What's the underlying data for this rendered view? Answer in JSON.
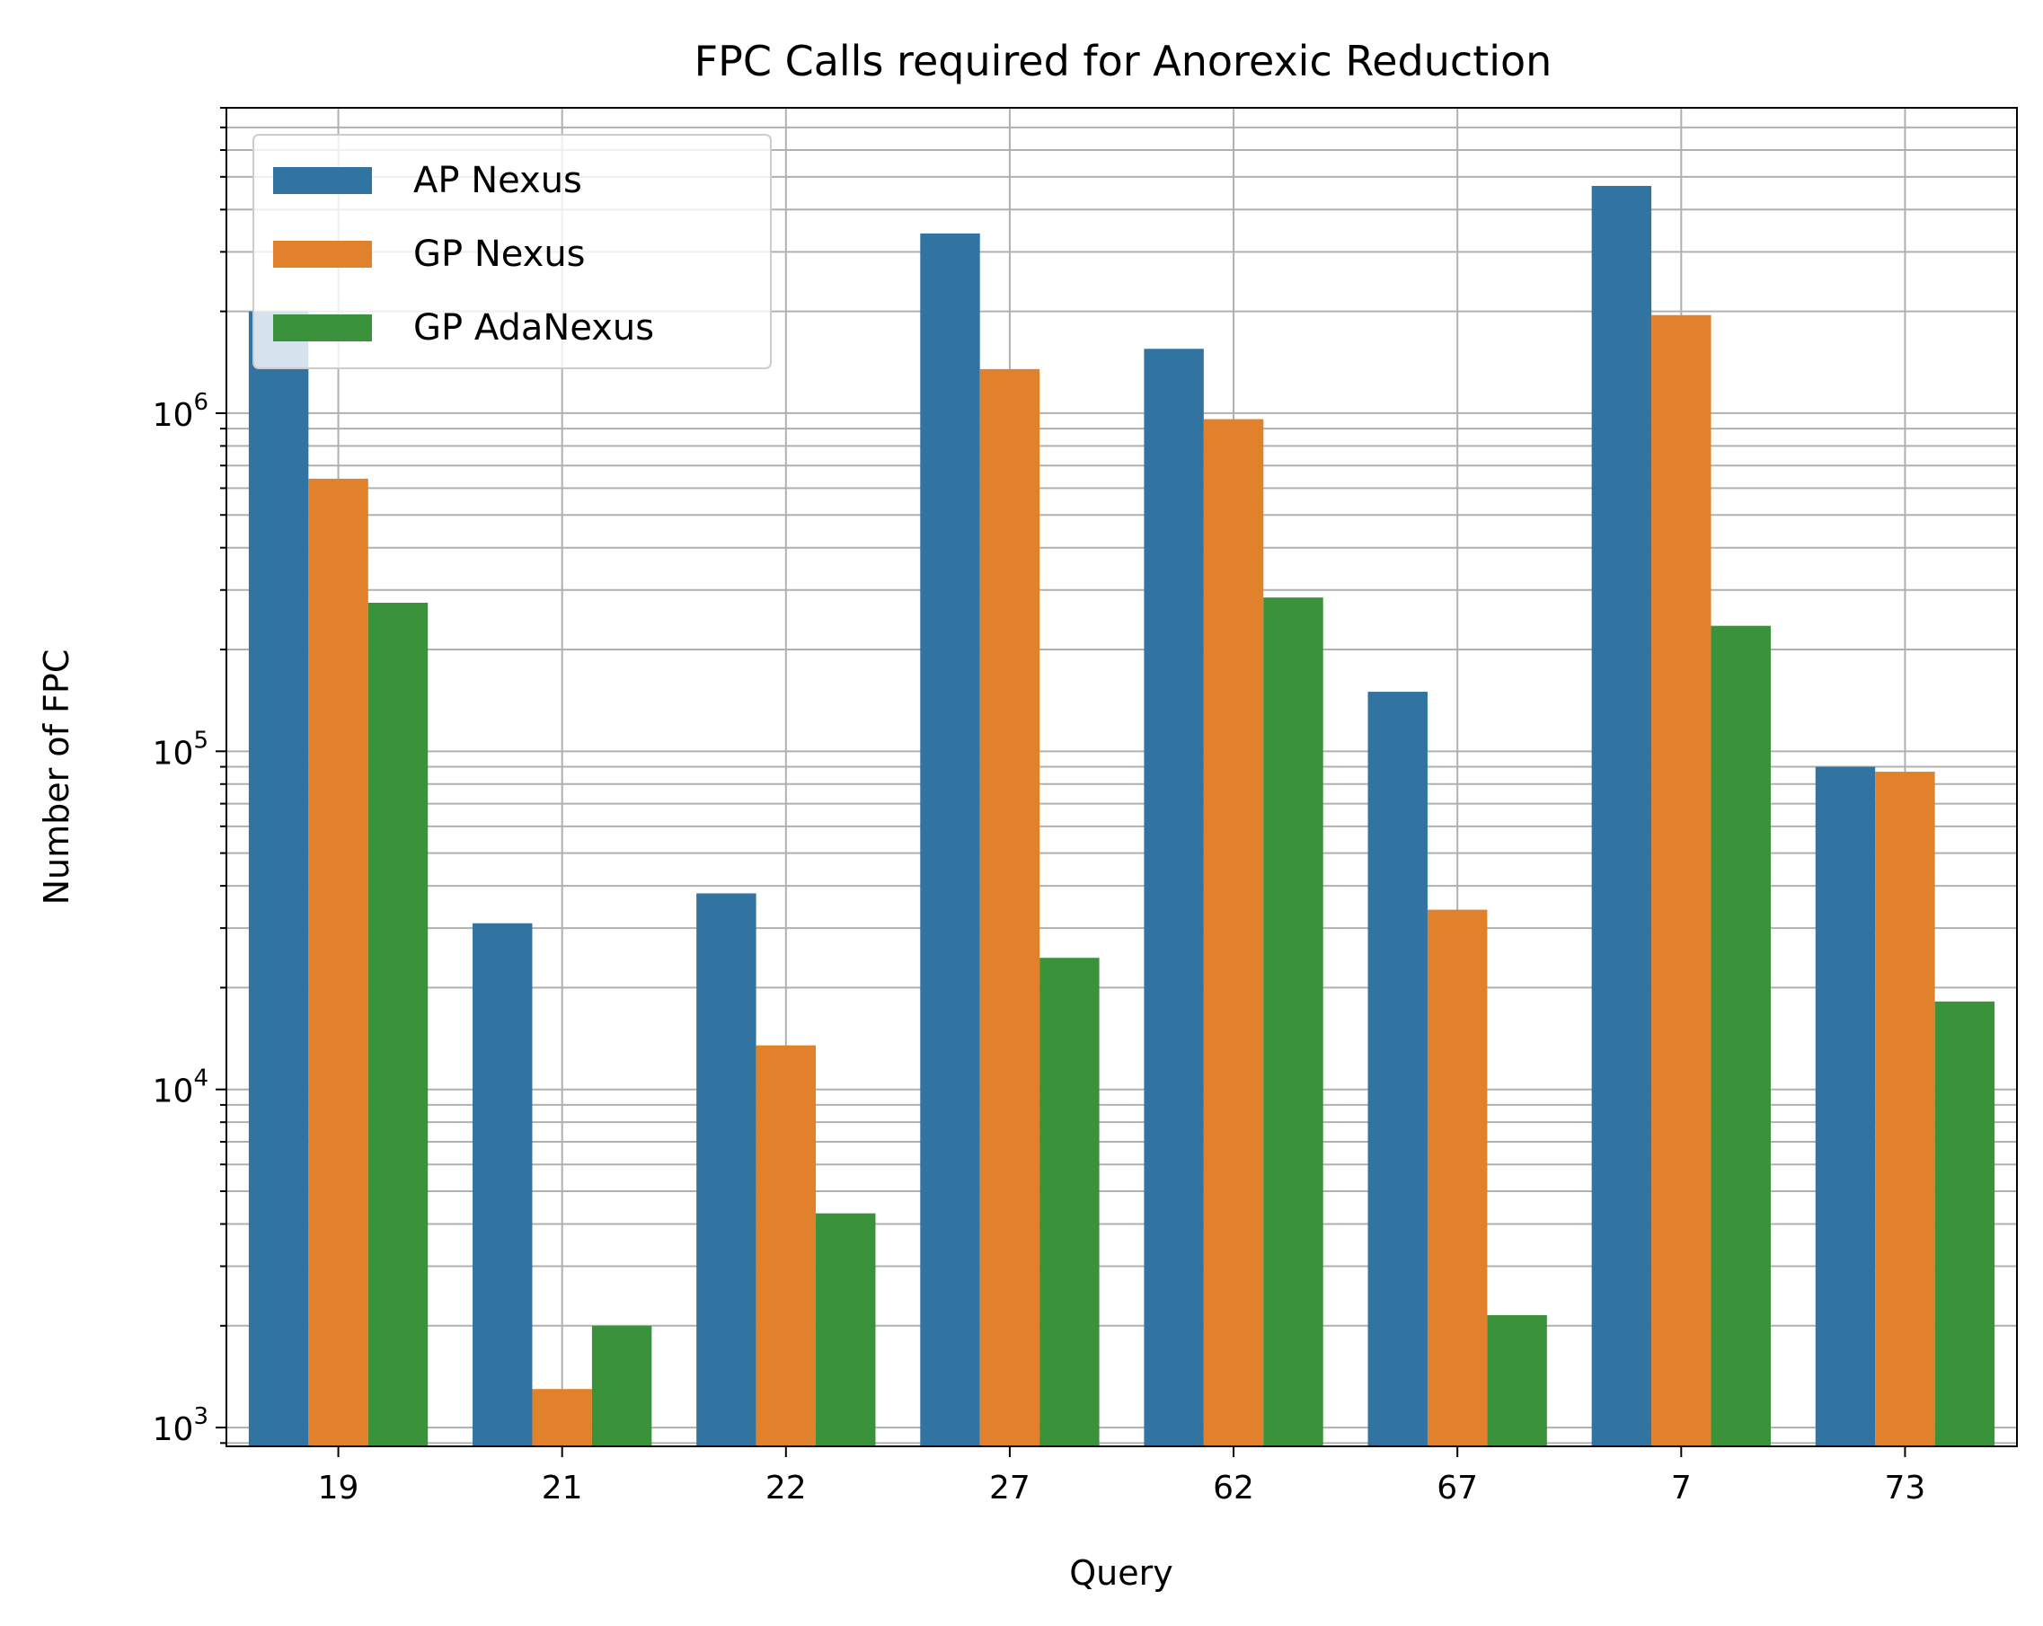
{
  "chart_data": {
    "type": "bar",
    "title": "FPC Calls required for Anorexic Reduction",
    "xlabel": "Query",
    "ylabel": "Number of FPC",
    "yscale": "log",
    "ylim": [
      880,
      8000000
    ],
    "y_ticks": [
      {
        "value": 1000,
        "base": "10",
        "exp": "3"
      },
      {
        "value": 10000,
        "base": "10",
        "exp": "4"
      },
      {
        "value": 100000,
        "base": "10",
        "exp": "5"
      },
      {
        "value": 1000000,
        "base": "10",
        "exp": "6"
      }
    ],
    "grid": true,
    "legend_position": "top-left",
    "categories": [
      "19",
      "21",
      "22",
      "27",
      "62",
      "67",
      "7",
      "73"
    ],
    "series": [
      {
        "name": "AP Nexus",
        "color": "#3274a1",
        "values": [
          2000000,
          31000,
          38000,
          3400000,
          1550000,
          150000,
          4700000,
          90000
        ]
      },
      {
        "name": "GP Nexus",
        "color": "#e1812c",
        "values": [
          640000,
          1300,
          13500,
          1350000,
          960000,
          34000,
          1950000,
          87000
        ]
      },
      {
        "name": "GP AdaNexus",
        "color": "#3a923a",
        "values": [
          275000,
          2000,
          4300,
          24500,
          285000,
          2150,
          235000,
          18200
        ]
      }
    ]
  }
}
